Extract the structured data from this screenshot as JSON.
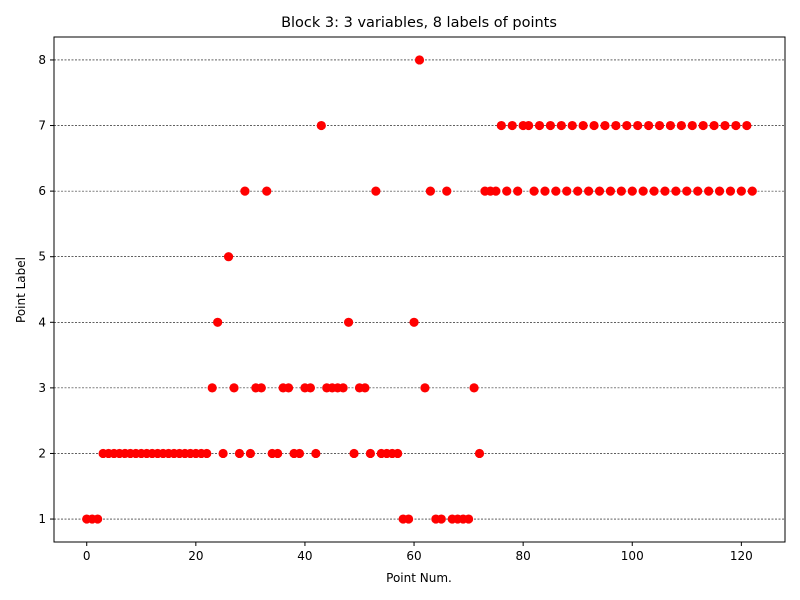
{
  "chart_data": {
    "type": "scatter",
    "title": "Block 3: 3 variables, 8 labels of points",
    "xlabel": "Point Num.",
    "ylabel": "Point Label",
    "xlim": [
      -6,
      128
    ],
    "ylim": [
      0.65,
      8.35
    ],
    "xticks": [
      0,
      20,
      40,
      60,
      80,
      100,
      120
    ],
    "yticks": [
      1,
      2,
      3,
      4,
      5,
      6,
      7,
      8
    ],
    "grid": "horizontal dashed",
    "marker_color": "#ff0000",
    "x": [
      0,
      1,
      2,
      3,
      4,
      5,
      6,
      7,
      8,
      9,
      10,
      11,
      12,
      13,
      14,
      15,
      16,
      17,
      18,
      19,
      20,
      21,
      22,
      23,
      24,
      25,
      26,
      27,
      28,
      29,
      30,
      31,
      32,
      33,
      34,
      35,
      36,
      37,
      38,
      39,
      40,
      41,
      42,
      43,
      44,
      45,
      46,
      47,
      48,
      49,
      50,
      51,
      52,
      53,
      54,
      55,
      56,
      57,
      58,
      59,
      60,
      61,
      62,
      63,
      64,
      65,
      66,
      67,
      68,
      69,
      70,
      71,
      72,
      73,
      74,
      75,
      76,
      77,
      78,
      79,
      80,
      81,
      82,
      83,
      84,
      85,
      86,
      87,
      88,
      89,
      90,
      91,
      92,
      93,
      94,
      95,
      96,
      97,
      98,
      99,
      100,
      101,
      102,
      103,
      104,
      105,
      106,
      107,
      108,
      109,
      110,
      111,
      112,
      113,
      114,
      115,
      116,
      117,
      118,
      119,
      120,
      121,
      122
    ],
    "y": [
      1,
      1,
      1,
      2,
      2,
      2,
      2,
      2,
      2,
      2,
      2,
      2,
      2,
      2,
      2,
      2,
      2,
      2,
      2,
      2,
      2,
      2,
      2,
      3,
      4,
      2,
      5,
      3,
      2,
      6,
      2,
      3,
      3,
      6,
      2,
      2,
      3,
      3,
      2,
      2,
      3,
      3,
      2,
      7,
      3,
      3,
      3,
      3,
      4,
      2,
      3,
      3,
      2,
      6,
      2,
      2,
      2,
      2,
      1,
      1,
      4,
      8,
      3,
      6,
      1,
      1,
      6,
      1,
      1,
      1,
      1,
      3,
      2,
      6,
      6,
      6,
      7,
      6,
      7,
      6,
      7,
      7,
      6,
      7,
      6,
      7,
      6,
      7,
      6,
      7,
      6,
      7,
      6,
      7,
      6,
      7,
      6,
      7,
      6,
      7,
      6,
      7,
      6,
      7,
      6,
      7,
      6,
      7,
      6,
      7,
      6,
      7,
      6,
      7,
      6,
      7,
      6,
      7,
      6,
      7,
      6,
      7,
      6
    ]
  }
}
